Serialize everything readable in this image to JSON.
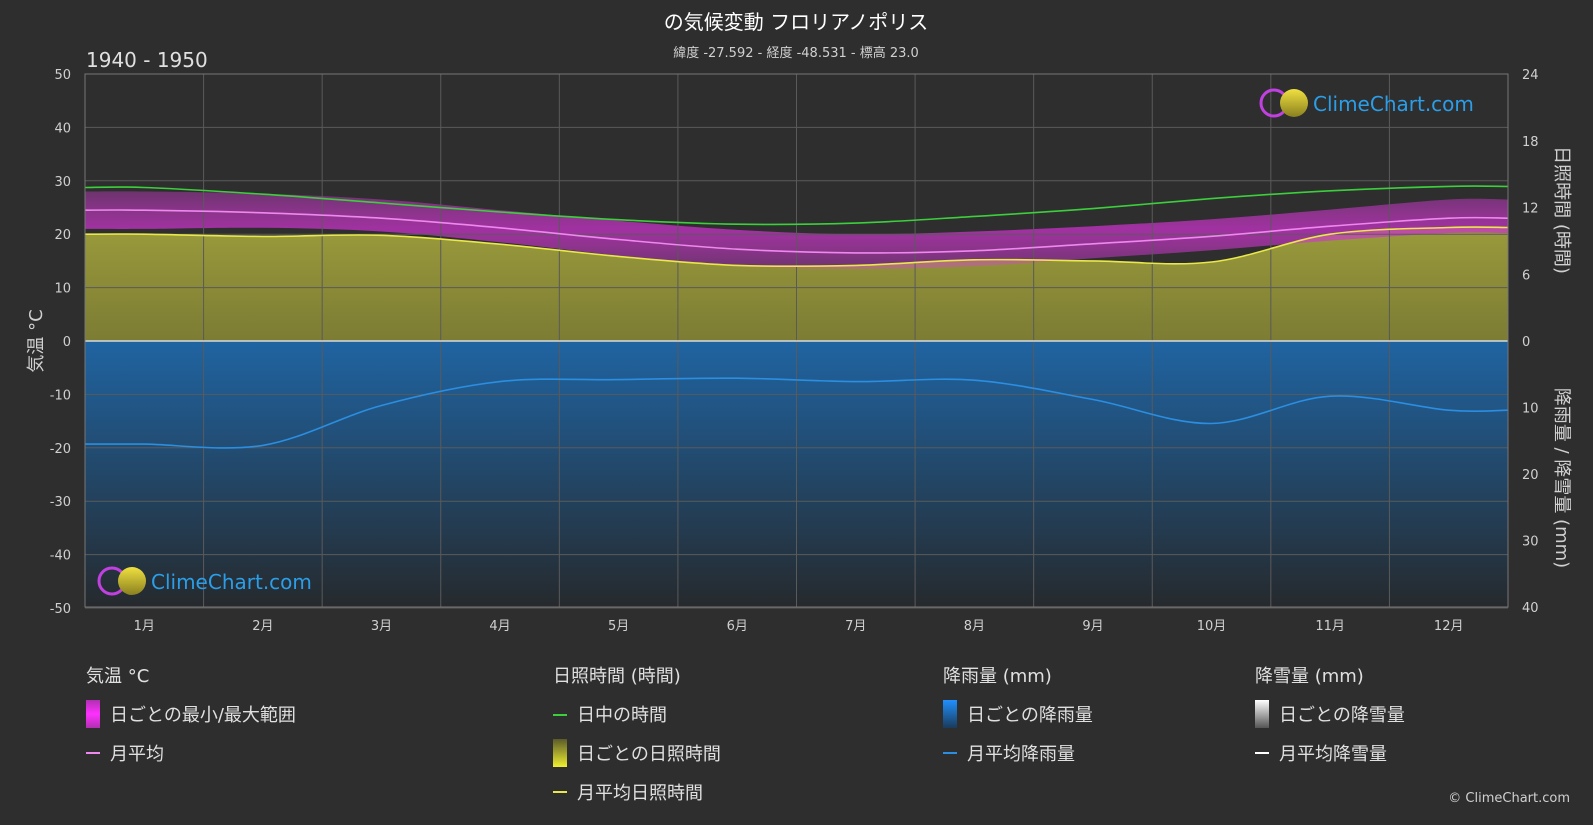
{
  "header": {
    "title": "の気候変動 フロリアノポリス",
    "subtitle": "緯度 -27.592 - 経度 -48.531 - 標高 23.0",
    "period": "1940 - 1950"
  },
  "axes": {
    "left_label": "気温 °C",
    "right_top_label": "日照時間 (時間)",
    "right_bottom_label": "降雨量 / 降雪量 (mm)"
  },
  "logo": {
    "text": "ClimeChart.com"
  },
  "copyright": "© ClimeChart.com",
  "legend": {
    "temperature": {
      "heading": "気温 °C",
      "items": [
        "日ごとの最小/最大範囲",
        "月平均"
      ]
    },
    "sunshine": {
      "heading": "日照時間 (時間)",
      "items": [
        "日中の時間",
        "日ごとの日照時間",
        "月平均日照時間"
      ]
    },
    "rain": {
      "heading": "降雨量 (mm)",
      "items": [
        "日ごとの降雨量",
        "月平均降雨量"
      ]
    },
    "snow": {
      "heading": "降雪量 (mm)",
      "items": [
        "日ごとの降雪量",
        "月平均降雪量"
      ]
    }
  },
  "colors": {
    "background": "#2e2e2e",
    "daylight": "#3ccf3c",
    "sunshine_line": "#e8e84a",
    "sunshine_fill": "#8c8c3a",
    "temp_range": "#d23cd2",
    "temp_mean": "#ee88ee",
    "rain": "#1e78c8",
    "rain_line": "#2b8ee0",
    "snow": "#ffffff"
  },
  "chart_data": {
    "type": "line",
    "categories": [
      "1月",
      "2月",
      "3月",
      "4月",
      "5月",
      "6月",
      "7月",
      "8月",
      "9月",
      "10月",
      "11月",
      "12月"
    ],
    "y_left": {
      "ticks": [
        50,
        40,
        30,
        20,
        10,
        0,
        -10,
        -20,
        -30,
        -40,
        -50
      ],
      "range": [
        -50,
        50
      ]
    },
    "y_right_sunshine": {
      "ticks": [
        24,
        18,
        12,
        6,
        0
      ],
      "range": [
        0,
        24
      ]
    },
    "y_right_precip": {
      "ticks": [
        0,
        10,
        20,
        30,
        40
      ],
      "range": [
        0,
        40
      ]
    },
    "series": [
      {
        "name": "日中の時間",
        "axis": "sunshine_hours",
        "values": [
          13.8,
          13.2,
          12.4,
          11.6,
          10.9,
          10.5,
          10.6,
          11.2,
          11.9,
          12.8,
          13.5,
          13.9
        ]
      },
      {
        "name": "月平均日照時間",
        "axis": "sunshine_hours",
        "values": [
          9.6,
          9.4,
          9.5,
          8.7,
          7.6,
          6.8,
          6.8,
          7.3,
          7.2,
          7.1,
          9.6,
          10.2
        ]
      },
      {
        "name": "月平均",
        "axis": "temperature_c",
        "values": [
          24.5,
          24.0,
          23.0,
          21.2,
          19.0,
          17.2,
          16.5,
          16.9,
          18.2,
          19.6,
          21.5,
          23.0
        ]
      },
      {
        "name": "月平均降雨量",
        "axis": "precip_mm",
        "values": [
          15.5,
          15.7,
          9.7,
          6.1,
          5.8,
          5.6,
          6.1,
          5.9,
          8.8,
          12.4,
          8.3,
          10.4
        ]
      },
      {
        "name": "日ごとの最小/最大範囲",
        "axis": "temperature_c",
        "min": [
          21.0,
          21.2,
          20.5,
          18.5,
          16.0,
          14.0,
          13.5,
          14.0,
          15.5,
          17.0,
          18.8,
          20.2
        ],
        "max": [
          28.0,
          27.6,
          26.5,
          24.5,
          22.5,
          20.8,
          20.0,
          20.5,
          21.5,
          22.8,
          24.6,
          26.5
        ]
      },
      {
        "name": "月平均降雪量",
        "axis": "precip_mm",
        "values": [
          0,
          0,
          0,
          0,
          0,
          0,
          0,
          0,
          0,
          0,
          0,
          0
        ]
      }
    ]
  }
}
